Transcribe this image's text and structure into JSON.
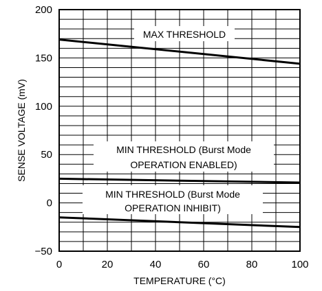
{
  "chart_data": {
    "type": "line",
    "xlabel": "TEMPERATURE (°C)",
    "ylabel": "SENSE VOLTAGE (mV)",
    "xlim": [
      0,
      100
    ],
    "ylim": [
      -50,
      200
    ],
    "xticks": [
      0,
      20,
      40,
      60,
      80,
      100
    ],
    "yticks": [
      -50,
      0,
      50,
      100,
      150,
      200
    ],
    "grid": true,
    "series": [
      {
        "name": "MAX THRESHOLD",
        "x": [
          0,
          100
        ],
        "y": [
          169,
          144
        ]
      },
      {
        "name": "MIN THRESHOLD (Burst Mode OPERATION ENABLED)",
        "x": [
          0,
          100
        ],
        "y": [
          25,
          21
        ]
      },
      {
        "name": "MIN THRESHOLD (Burst Mode OPERATION INHIBIT)",
        "x": [
          0,
          100
        ],
        "y": [
          -15,
          -25
        ]
      }
    ],
    "annotations": [
      {
        "lines": [
          "MAX THRESHOLD"
        ]
      },
      {
        "lines": [
          "MIN THRESHOLD (Burst Mode",
          "OPERATION ENABLED)"
        ]
      },
      {
        "lines": [
          "MIN THRESHOLD (Burst Mode",
          "OPERATION INHIBIT)"
        ]
      }
    ]
  }
}
